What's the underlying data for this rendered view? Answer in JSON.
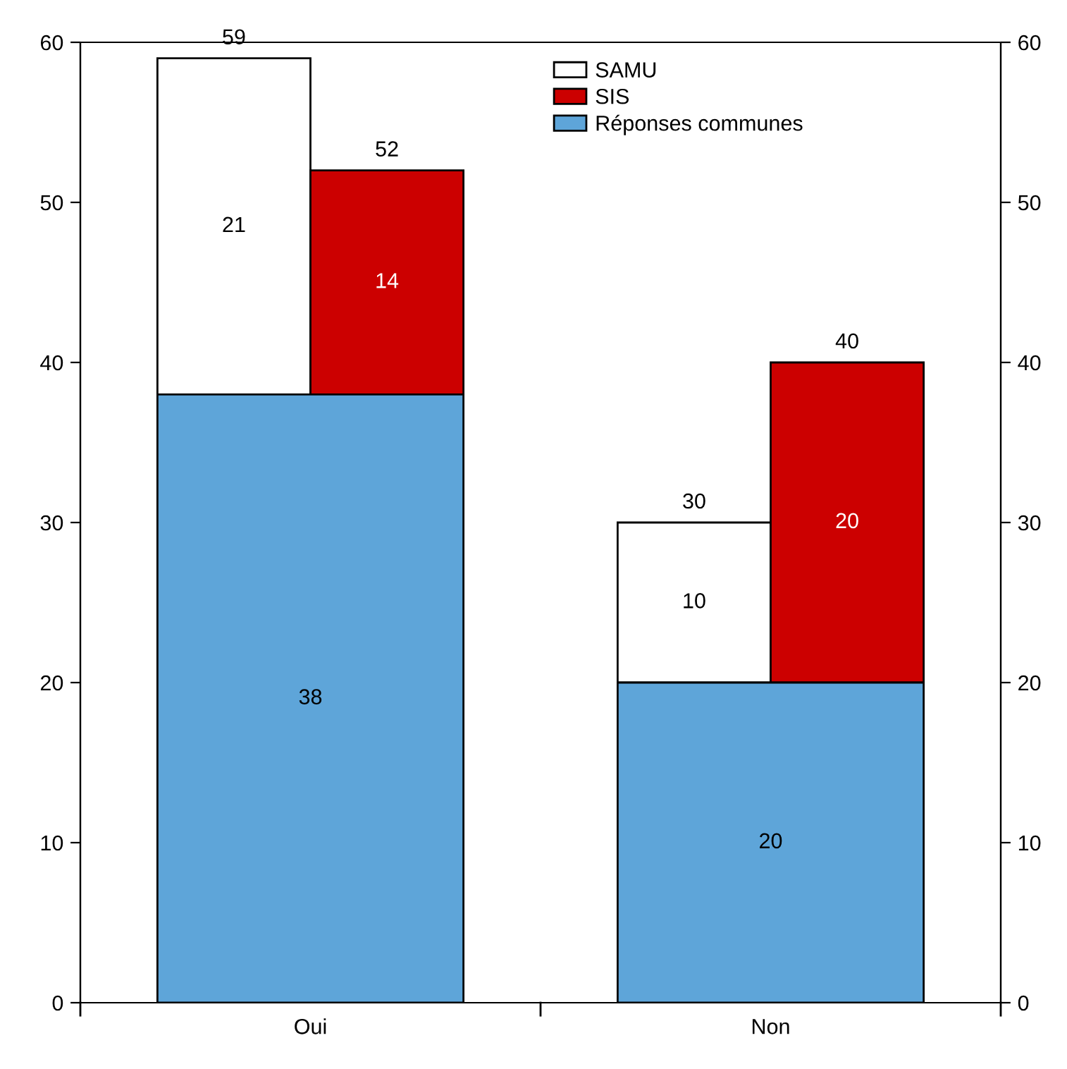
{
  "chart_data": {
    "type": "bar",
    "categories": [
      "Oui",
      "Non"
    ],
    "series": [
      {
        "name": "SAMU",
        "color": "#ffffff",
        "values": [
          21,
          10
        ],
        "base": [
          38,
          20
        ]
      },
      {
        "name": "SIS",
        "color": "#cc0000",
        "values": [
          14,
          20
        ],
        "base": [
          38,
          20
        ]
      },
      {
        "name": "Réponses communes",
        "color": "#5ea5d9",
        "values": [
          38,
          20
        ]
      }
    ],
    "data_labels": true,
    "annotations": [
      "59",
      "52",
      "30",
      "40"
    ],
    "ylim": [
      0,
      60
    ],
    "yticks": [
      0,
      10,
      20,
      30,
      40,
      50,
      60
    ],
    "y2lim": [
      0,
      60
    ],
    "y2ticks": [
      0,
      10,
      20,
      30,
      40,
      50,
      60
    ],
    "grid": false,
    "legend": "top"
  }
}
